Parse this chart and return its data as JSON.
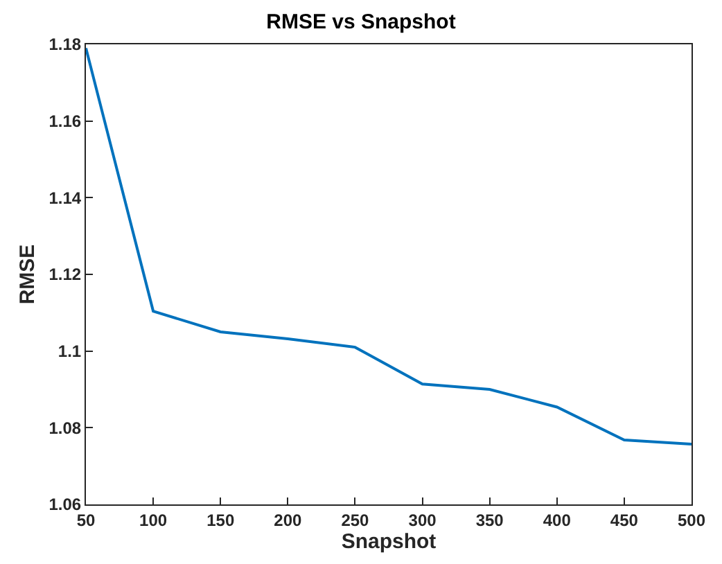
{
  "chart_data": {
    "type": "line",
    "title": "RMSE vs Snapshot",
    "xlabel": "Snapshot",
    "ylabel": "RMSE",
    "x": [
      50,
      100,
      150,
      200,
      250,
      300,
      350,
      400,
      450,
      500
    ],
    "series": [
      {
        "color": "#0072bd",
        "values": [
          1.179,
          1.1104,
          1.105,
          1.1032,
          1.101,
          1.0914,
          1.09,
          1.0854,
          1.0768,
          1.0757
        ]
      }
    ],
    "xlim": [
      50,
      500
    ],
    "xticks": [
      50,
      100,
      150,
      200,
      250,
      300,
      350,
      400,
      450,
      500
    ],
    "ylim": [
      1.06,
      1.18
    ],
    "yticks": [
      1.06,
      1.08,
      {
        "value": 1.1,
        "label": "1.1"
      },
      1.12,
      1.14,
      1.16,
      1.18
    ],
    "marker": "none",
    "line_style": "solid"
  }
}
